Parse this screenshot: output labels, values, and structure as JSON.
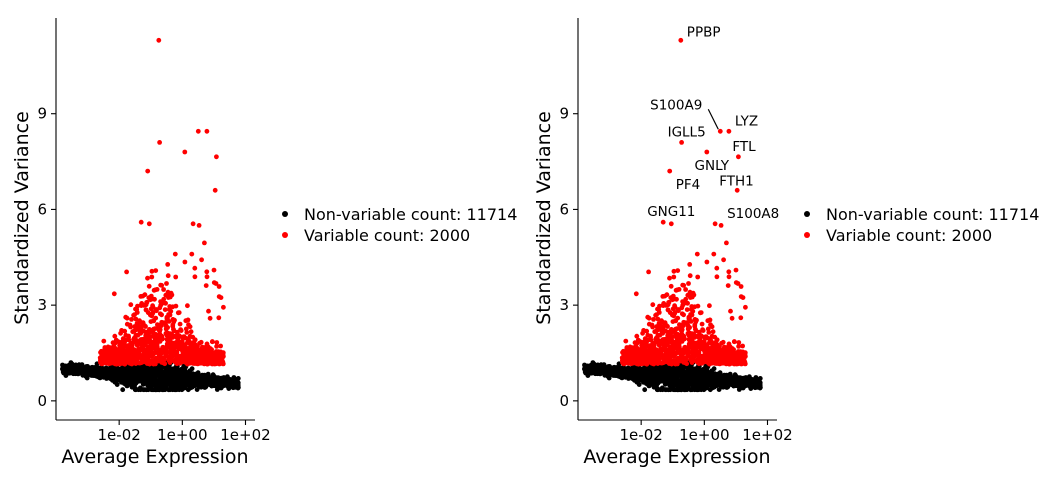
{
  "chart_data": [
    {
      "type": "scatter",
      "panel": "left",
      "xlabel": "Average Expression",
      "ylabel": "Standardized Variance",
      "x_scale": "log10",
      "xlim": [
        0.0001,
        200
      ],
      "ylim": [
        -0.6,
        12
      ],
      "x_ticks": [
        {
          "value": 0.01,
          "label": "1e-02"
        },
        {
          "value": 1,
          "label": "1e+00"
        },
        {
          "value": 100,
          "label": "1e+02"
        }
      ],
      "y_ticks": [
        {
          "value": 0,
          "label": "0"
        },
        {
          "value": 3,
          "label": "3"
        },
        {
          "value": 6,
          "label": "6"
        },
        {
          "value": 9,
          "label": "9"
        }
      ],
      "grid": false,
      "legend_position": "right",
      "series": [
        {
          "name": "Non-variable count: 11714",
          "color": "#000000",
          "count": 11714
        },
        {
          "name": "Variable count: 2000",
          "color": "#ff0000",
          "count": 2000,
          "highlighted_points": [
            {
              "x": 0.18,
              "y": 11.3
            },
            {
              "x": 0.19,
              "y": 8.1
            },
            {
              "x": 3.2,
              "y": 8.45
            },
            {
              "x": 6.0,
              "y": 8.45
            },
            {
              "x": 1.2,
              "y": 7.8
            },
            {
              "x": 12.0,
              "y": 7.65
            },
            {
              "x": 0.08,
              "y": 7.2
            },
            {
              "x": 11.0,
              "y": 6.6
            },
            {
              "x": 0.05,
              "y": 5.6
            },
            {
              "x": 2.2,
              "y": 5.55
            },
            {
              "x": 3.4,
              "y": 5.5
            },
            {
              "x": 0.09,
              "y": 5.55
            },
            {
              "x": 5.0,
              "y": 4.95
            },
            {
              "x": 0.6,
              "y": 4.6
            },
            {
              "x": 2.0,
              "y": 4.6
            }
          ]
        }
      ]
    },
    {
      "type": "scatter",
      "panel": "right",
      "xlabel": "Average Expression",
      "ylabel": "Standardized Variance",
      "x_scale": "log10",
      "xlim": [
        0.0001,
        200
      ],
      "ylim": [
        -0.6,
        12
      ],
      "x_ticks": [
        {
          "value": 0.01,
          "label": "1e-02"
        },
        {
          "value": 1,
          "label": "1e+00"
        },
        {
          "value": 100,
          "label": "1e+02"
        }
      ],
      "y_ticks": [
        {
          "value": 0,
          "label": "0"
        },
        {
          "value": 3,
          "label": "3"
        },
        {
          "value": 6,
          "label": "6"
        },
        {
          "value": 9,
          "label": "9"
        }
      ],
      "grid": false,
      "legend_position": "right",
      "series": [
        {
          "name": "Non-variable count: 11714",
          "color": "#000000",
          "count": 11714
        },
        {
          "name": "Variable count: 2000",
          "color": "#ff0000",
          "count": 2000,
          "highlighted_points": [
            {
              "x": 0.18,
              "y": 11.3
            },
            {
              "x": 0.19,
              "y": 8.1
            },
            {
              "x": 3.2,
              "y": 8.45
            },
            {
              "x": 6.0,
              "y": 8.45
            },
            {
              "x": 1.2,
              "y": 7.8
            },
            {
              "x": 12.0,
              "y": 7.65
            },
            {
              "x": 0.08,
              "y": 7.2
            },
            {
              "x": 11.0,
              "y": 6.6
            },
            {
              "x": 0.05,
              "y": 5.6
            },
            {
              "x": 2.2,
              "y": 5.55
            },
            {
              "x": 3.4,
              "y": 5.5
            },
            {
              "x": 0.09,
              "y": 5.55
            },
            {
              "x": 5.0,
              "y": 4.95
            },
            {
              "x": 0.6,
              "y": 4.6
            },
            {
              "x": 2.0,
              "y": 4.6
            }
          ]
        }
      ],
      "annotations": [
        {
          "label": "PPBP",
          "x": 0.18,
          "y": 11.3
        },
        {
          "label": "S100A9",
          "x": 3.2,
          "y": 8.45
        },
        {
          "label": "LYZ",
          "x": 6.0,
          "y": 8.45
        },
        {
          "label": "IGLL5",
          "x": 0.19,
          "y": 8.1
        },
        {
          "label": "FTL",
          "x": 12.0,
          "y": 7.65
        },
        {
          "label": "GNLY",
          "x": 1.2,
          "y": 7.8
        },
        {
          "label": "PF4",
          "x": 0.08,
          "y": 7.2
        },
        {
          "label": "FTH1",
          "x": 11.0,
          "y": 6.6
        },
        {
          "label": "GNG11",
          "x": 0.05,
          "y": 5.6
        },
        {
          "label": "S100A8",
          "x": 2.2,
          "y": 5.55
        }
      ]
    }
  ]
}
